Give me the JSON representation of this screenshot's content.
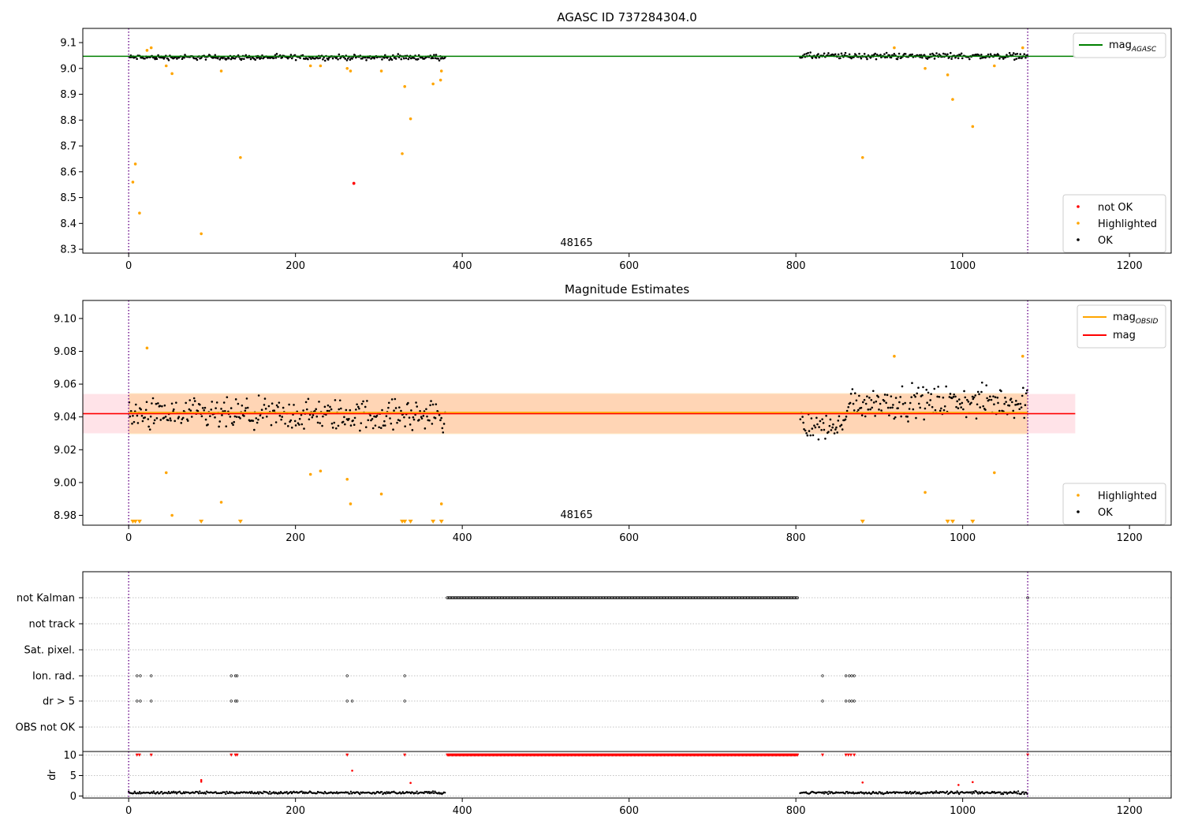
{
  "chart_data": [
    {
      "type": "scatter",
      "title": "AGASC ID 737284304.0",
      "xlim": [
        -55,
        1250
      ],
      "ylim": [
        8.285,
        9.155
      ],
      "xticks": [
        "0",
        "200",
        "400",
        "600",
        "800",
        "1000",
        "1200"
      ],
      "yticks": [
        "8.3",
        "8.4",
        "8.5",
        "8.6",
        "8.7",
        "8.8",
        "8.9",
        "9.0",
        "9.1"
      ],
      "xtick_values": [
        0,
        200,
        400,
        600,
        800,
        1000,
        1200
      ],
      "ytick_values": [
        8.3,
        8.4,
        8.5,
        8.6,
        8.7,
        8.8,
        8.9,
        9.0,
        9.1
      ],
      "obsid_label": "48165",
      "obsid_x": 537,
      "obs_bounds": [
        0,
        1078
      ],
      "mag_agasc": 9.047,
      "mag_line_range": [
        -55,
        1135
      ],
      "legend_lines": [
        {
          "label": "mag",
          "sub": "AGASC",
          "color": "#008000"
        }
      ],
      "legend_markers": [
        {
          "label": "not OK",
          "color": "#ff0000"
        },
        {
          "label": "Highlighted",
          "color": "#ffa500"
        },
        {
          "label": "OK",
          "color": "#000000"
        }
      ],
      "ok_segments": [
        {
          "x": [
            0,
            380
          ],
          "center": 9.043,
          "spread": 0.009
        },
        {
          "x": [
            805,
            1078
          ],
          "center": 9.048,
          "spread": 0.011
        }
      ],
      "highlighted": [
        [
          5,
          8.56
        ],
        [
          8,
          8.63
        ],
        [
          13,
          8.44
        ],
        [
          22,
          9.07
        ],
        [
          27,
          9.08
        ],
        [
          45,
          9.01
        ],
        [
          52,
          8.98
        ],
        [
          87,
          8.36
        ],
        [
          111,
          8.99
        ],
        [
          134,
          8.655
        ],
        [
          218,
          9.01
        ],
        [
          230,
          9.01
        ],
        [
          262,
          9.0
        ],
        [
          266,
          8.99
        ],
        [
          303,
          8.99
        ],
        [
          328,
          8.67
        ],
        [
          331,
          8.93
        ],
        [
          338,
          8.805
        ],
        [
          365,
          8.94
        ],
        [
          374,
          8.955
        ],
        [
          375,
          8.99
        ],
        [
          880,
          8.655
        ],
        [
          918,
          9.08
        ],
        [
          955,
          9.0
        ],
        [
          982,
          8.975
        ],
        [
          988,
          8.88
        ],
        [
          1012,
          8.775
        ],
        [
          1038,
          9.01
        ],
        [
          1072,
          9.08
        ]
      ],
      "not_ok": [
        [
          270,
          8.555
        ]
      ]
    },
    {
      "type": "scatter",
      "title": "Magnitude Estimates",
      "xlim": [
        -55,
        1250
      ],
      "ylim": [
        8.974,
        9.111
      ],
      "xticks": [
        "0",
        "200",
        "400",
        "600",
        "800",
        "1000",
        "1200"
      ],
      "yticks": [
        "8.98",
        "9.00",
        "9.02",
        "9.04",
        "9.06",
        "9.08",
        "9.10"
      ],
      "xtick_values": [
        0,
        200,
        400,
        600,
        800,
        1000,
        1200
      ],
      "ytick_values": [
        8.98,
        9.0,
        9.02,
        9.04,
        9.06,
        9.08,
        9.1
      ],
      "obsid_label": "48165",
      "obsid_x": 537,
      "obs_bounds": [
        0,
        1078
      ],
      "mag": 9.042,
      "mag_band": [
        9.03,
        9.054
      ],
      "mag_obsid": 9.042,
      "mag_obsid_band": [
        9.03,
        9.054
      ],
      "mag_obsid_range": [
        0,
        1078
      ],
      "mag_line_range": [
        -55,
        1135
      ],
      "legend_lines": [
        {
          "label": "mag",
          "sub": "OBSID",
          "color": "#ffa500"
        },
        {
          "label": "mag",
          "sub": "",
          "color": "#ff0000"
        }
      ],
      "legend_markers": [
        {
          "label": "Highlighted",
          "color": "#ffa500"
        },
        {
          "label": "OK",
          "color": "#000000"
        }
      ],
      "ok_segments": [
        {
          "x": [
            0,
            380
          ],
          "center": 9.041,
          "spread": 0.009
        },
        {
          "x": [
            805,
            860
          ],
          "center": 9.034,
          "spread": 0.008
        },
        {
          "x": [
            860,
            1078
          ],
          "center": 9.049,
          "spread": 0.009
        }
      ],
      "highlighted": [
        [
          22,
          9.082
        ],
        [
          45,
          9.006
        ],
        [
          52,
          8.98
        ],
        [
          111,
          8.988
        ],
        [
          218,
          9.005
        ],
        [
          230,
          9.007
        ],
        [
          262,
          9.002
        ],
        [
          266,
          8.987
        ],
        [
          303,
          8.993
        ],
        [
          375,
          8.987
        ],
        [
          918,
          9.077
        ],
        [
          955,
          8.994
        ],
        [
          1038,
          9.006
        ],
        [
          1072,
          9.077
        ]
      ],
      "clipped_low": [
        5,
        8,
        13,
        87,
        134,
        328,
        331,
        338,
        365,
        375,
        880,
        982,
        988,
        1012
      ]
    },
    {
      "type": "scatter",
      "title": "",
      "xlim": [
        -55,
        1250
      ],
      "xticks": [
        "0",
        "200",
        "400",
        "600",
        "800",
        "1000",
        "1200"
      ],
      "xtick_values": [
        0,
        200,
        400,
        600,
        800,
        1000,
        1200
      ],
      "obs_bounds": [
        0,
        1078
      ],
      "flag_rows": [
        "not Kalman",
        "not track",
        "Sat. pixel.",
        "Ion. rad.",
        "dr > 5",
        "OBS not OK"
      ],
      "not_kalman_range": [
        382,
        803
      ],
      "ion_rad_x": [
        10,
        14,
        27,
        123,
        128,
        130,
        262,
        331,
        832,
        860,
        864,
        867,
        870
      ],
      "dr_gt5_x": [
        10,
        14,
        27,
        123,
        128,
        130,
        262,
        268,
        331,
        832,
        860,
        864,
        867,
        870
      ],
      "sub_ylabel": "dr",
      "sub_yticks": [
        "0",
        "5",
        "10"
      ],
      "sub_ytick_values": [
        0,
        5,
        10
      ],
      "sub_ylim": [
        -0.5,
        10.5
      ],
      "dr_high": [
        [
          10,
          10
        ],
        [
          13,
          10
        ],
        [
          27,
          10
        ],
        [
          123,
          10
        ],
        [
          128,
          10
        ],
        [
          130,
          10
        ],
        [
          262,
          10
        ],
        [
          331,
          10
        ],
        [
          832,
          10
        ],
        [
          860,
          10
        ],
        [
          863,
          10
        ],
        [
          866,
          10
        ],
        [
          870,
          10
        ],
        [
          1078,
          10
        ]
      ],
      "dr_red_mid": [
        [
          87,
          3.9
        ],
        [
          87,
          3.5
        ],
        [
          268,
          6.2
        ],
        [
          338,
          3.2
        ],
        [
          880,
          3.3
        ],
        [
          1012,
          3.4
        ],
        [
          995,
          2.7
        ]
      ],
      "dr_segments": [
        {
          "x": [
            0,
            380
          ],
          "center": 0.8,
          "spread": 0.45
        },
        {
          "x": [
            805,
            1078
          ],
          "center": 0.8,
          "spread": 0.45
        }
      ]
    }
  ]
}
